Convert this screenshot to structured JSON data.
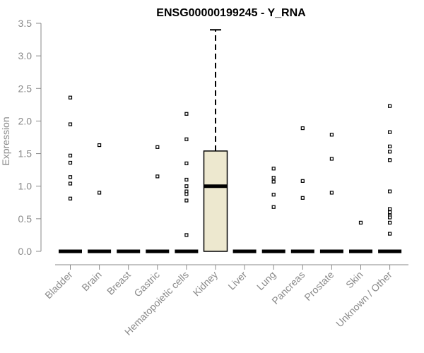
{
  "chart_data": {
    "type": "box",
    "title": "ENSG00000199245 - Y_RNA",
    "xlabel": "",
    "ylabel": "Expression",
    "ylim": [
      0,
      3.5
    ],
    "yticks": [
      "0.0",
      "0.5",
      "1.0",
      "1.5",
      "2.0",
      "2.5",
      "3.0",
      "3.5"
    ],
    "grid": false,
    "colors": {
      "box_fill": "#ede8cf",
      "axis": "#8a8a8a",
      "stroke": "#000000"
    },
    "categories": [
      "Bladder",
      "Brain",
      "Breast",
      "Gastric",
      "Hematopoietic cells",
      "Kidney",
      "Liver",
      "Lung",
      "Pancreas",
      "Prostate",
      "Skin",
      "Unknown / Other"
    ],
    "boxes": [
      {
        "category": "Bladder",
        "min": 0,
        "q1": 0,
        "median": 0,
        "q3": 0,
        "max": 0,
        "outliers": [
          2.36,
          1.95,
          1.47,
          1.36,
          1.14,
          1.04,
          0.81
        ]
      },
      {
        "category": "Brain",
        "min": 0,
        "q1": 0,
        "median": 0,
        "q3": 0,
        "max": 0,
        "outliers": [
          1.63,
          0.9
        ]
      },
      {
        "category": "Breast",
        "min": 0,
        "q1": 0,
        "median": 0,
        "q3": 0,
        "max": 0,
        "outliers": []
      },
      {
        "category": "Gastric",
        "min": 0,
        "q1": 0,
        "median": 0,
        "q3": 0,
        "max": 0,
        "outliers": [
          1.6,
          1.15
        ]
      },
      {
        "category": "Hematopoietic cells",
        "min": 0,
        "q1": 0,
        "median": 0,
        "q3": 0,
        "max": 0,
        "outliers": [
          2.11,
          1.72,
          1.35,
          1.1,
          1.0,
          0.92,
          0.88,
          0.78,
          0.25
        ]
      },
      {
        "category": "Kidney",
        "min": 0,
        "q1": 0,
        "median": 1.0,
        "q3": 1.54,
        "max": 3.4,
        "outliers": []
      },
      {
        "category": "Liver",
        "min": 0,
        "q1": 0,
        "median": 0,
        "q3": 0,
        "max": 0,
        "outliers": []
      },
      {
        "category": "Lung",
        "min": 0,
        "q1": 0,
        "median": 0,
        "q3": 0,
        "max": 0,
        "outliers": [
          1.27,
          1.13,
          1.07,
          0.87,
          0.68
        ]
      },
      {
        "category": "Pancreas",
        "min": 0,
        "q1": 0,
        "median": 0,
        "q3": 0,
        "max": 0,
        "outliers": [
          1.89,
          1.08,
          0.82
        ]
      },
      {
        "category": "Prostate",
        "min": 0,
        "q1": 0,
        "median": 0,
        "q3": 0,
        "max": 0,
        "outliers": [
          1.79,
          1.42,
          0.9
        ]
      },
      {
        "category": "Skin",
        "min": 0,
        "q1": 0,
        "median": 0,
        "q3": 0,
        "max": 0,
        "outliers": [
          0.44
        ]
      },
      {
        "category": "Unknown / Other",
        "min": 0,
        "q1": 0,
        "median": 0,
        "q3": 0,
        "max": 0,
        "outliers": [
          2.23,
          1.83,
          1.61,
          1.53,
          1.4,
          0.92,
          0.65,
          0.6,
          0.55,
          0.52,
          0.44,
          0.27
        ]
      }
    ]
  }
}
